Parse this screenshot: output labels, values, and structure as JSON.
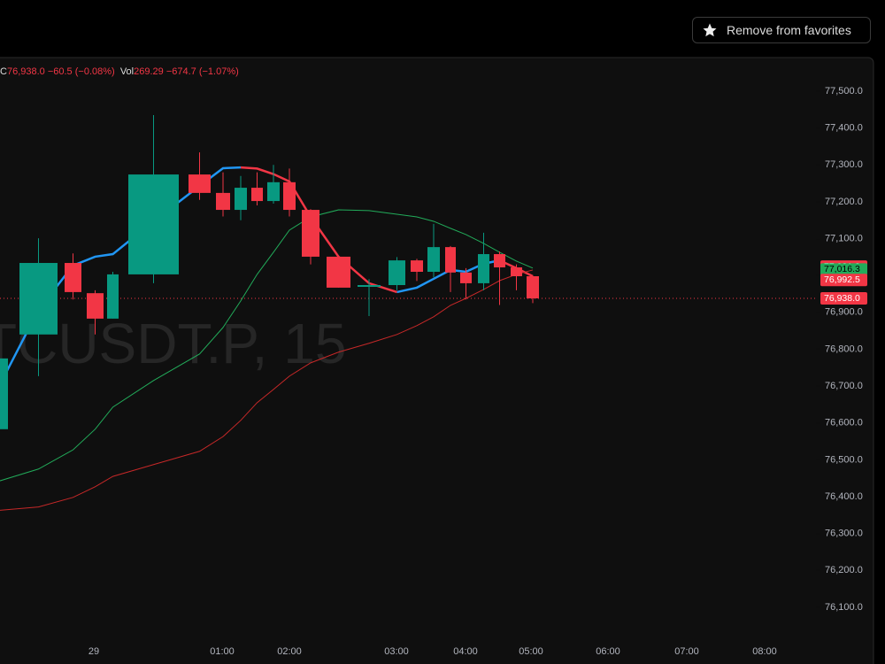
{
  "toolbar": {
    "button": "Remove from favorites"
  },
  "chart_data": {
    "type": "candlestick",
    "watermark": "TCUSDT.P, 15",
    "legend": {
      "close_label": "C",
      "close": "76,938.0",
      "change": "−60.5 (−0.08%)",
      "vol_label": "Vol",
      "vol": "269.29",
      "vol_change": "−674.7 (−1.07%)"
    },
    "up_color": "#089981",
    "down_color": "#f23645",
    "categories": [
      null,
      null,
      null,
      null,
      null,
      null,
      null,
      null,
      null,
      null,
      null,
      null,
      null,
      null,
      null,
      null,
      null,
      null,
      null,
      null,
      null,
      null,
      null,
      null
    ],
    "open": [
      76583,
      76840,
      77034,
      76952,
      76883,
      77003,
      77274,
      77224,
      77178,
      77238,
      77202,
      77253,
      77178,
      77051,
      76974,
      76974,
      77041,
      77010,
      77077,
      77008,
      76979,
      77058,
      77022,
      76998
    ],
    "high": [
      76847,
      77101,
      77060,
      76960,
      77010,
      77435,
      77334,
      77280,
      77270,
      77280,
      77300,
      77290,
      77180,
      77051,
      76990,
      77050,
      77045,
      77140,
      77080,
      77020,
      77116,
      77065,
      77030,
      77000
    ],
    "low": [
      76583,
      76727,
      76935,
      76840,
      76883,
      76979,
      77205,
      77160,
      77150,
      77190,
      77195,
      77160,
      77030,
      76967,
      76890,
      76960,
      76985,
      76995,
      76955,
      76935,
      76960,
      76920,
      76960,
      76925
    ],
    "close": [
      76775,
      77034,
      76955,
      76883,
      77003,
      77274,
      77224,
      77178,
      77238,
      77202,
      77253,
      77178,
      77051,
      76967,
      76974,
      77041,
      77010,
      77077,
      77008,
      76979,
      77058,
      77022,
      76998,
      76938
    ],
    "series": [
      {
        "color": "#2196f3",
        "values": [
          76679,
          76907,
          77027,
          77051,
          77058,
          77147,
          77243,
          77291,
          77293,
          null,
          null,
          null,
          null,
          null,
          null,
          76955,
          76967,
          76991,
          77015,
          77010,
          77032,
          77041,
          null,
          null
        ]
      },
      {
        "color": "#f23645",
        "values": [
          null,
          null,
          null,
          null,
          null,
          null,
          null,
          null,
          77293,
          77290,
          77275,
          77255,
          77159,
          77051,
          76979,
          76955,
          null,
          null,
          null,
          null,
          null,
          77041,
          77020,
          76998
        ]
      },
      {
        "color": "#22ab5a",
        "values": [
          76439,
          76475,
          76527,
          76583,
          76643,
          76715,
          76787,
          76859,
          76931,
          77003,
          77063,
          77123,
          77159,
          77178,
          77176,
          77166,
          77159,
          77147,
          77128,
          77111,
          77087,
          77063,
          77039,
          77020
        ]
      },
      {
        "color": "#c62828",
        "values": [
          76362,
          76372,
          76398,
          76427,
          76455,
          76487,
          76523,
          76563,
          76607,
          76655,
          76691,
          76727,
          76763,
          76792,
          76816,
          76840,
          76864,
          76888,
          76919,
          76938,
          76962,
          76986,
          77003,
          77015
        ]
      }
    ],
    "ylim": [
      76010,
      77590
    ],
    "yticks": [
      {
        "value": 76100,
        "label": "76,100.0"
      },
      {
        "value": 76200,
        "label": "76,200.0"
      },
      {
        "value": 76300,
        "label": "76,300.0"
      },
      {
        "value": 76400,
        "label": "76,400.0"
      },
      {
        "value": 76500,
        "label": "76,500.0"
      },
      {
        "value": 76600,
        "label": "76,600.0"
      },
      {
        "value": 76700,
        "label": "76,700.0"
      },
      {
        "value": 76800,
        "label": "76,800.0"
      },
      {
        "value": 76900,
        "label": "76,900.0"
      },
      {
        "value": 77000,
        "label": "77,000.0"
      },
      {
        "value": 77100,
        "label": "77,100.0"
      },
      {
        "value": 77200,
        "label": "77,200.0"
      },
      {
        "value": 77300,
        "label": "77,300.0"
      },
      {
        "value": 77400,
        "label": "77,400.0"
      },
      {
        "value": 77500,
        "label": "77,500.0"
      }
    ],
    "price_tags": [
      {
        "value": 77021.8,
        "label": "77,021.8",
        "color": "#f23645"
      },
      {
        "value": 77016.3,
        "label": "77,016.3",
        "color": "#22ab5a"
      },
      {
        "value": 76992.5,
        "label": "76,992.5",
        "color": "#f23645"
      },
      {
        "value": 76938.0,
        "label": "76,938.0",
        "color": "#f23645"
      }
    ],
    "time_labels": [
      "29",
      "01:00",
      "02:00",
      "03:00",
      "04:00",
      "05:00",
      "06:00",
      "07:00",
      "08:00"
    ]
  }
}
